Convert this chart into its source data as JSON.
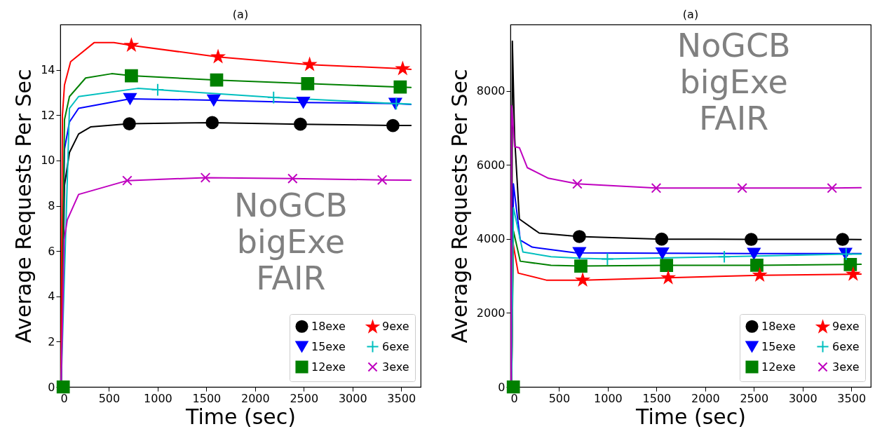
{
  "chart_data": [
    {
      "type": "line",
      "title": "(a)",
      "xlabel": "Time (sec)",
      "ylabel": "Average Requests Per Sec",
      "xlim": [
        0,
        3700
      ],
      "ylim": [
        0,
        16
      ],
      "xticks": [
        0,
        500,
        1000,
        1500,
        2000,
        2500,
        3000,
        3500
      ],
      "yticks": [
        0,
        2,
        4,
        6,
        8,
        10,
        12,
        14
      ],
      "legend": "bottom right",
      "annotations": [
        "NoGCB\nbigExe\nFAIR"
      ],
      "series": [
        {
          "name": "18exe",
          "color": "#000000",
          "x": [
            8,
            43,
            94,
            188,
            311,
            709,
            1560,
            2465,
            3415,
            3600
          ],
          "values": [
            0,
            8.9,
            10.35,
            11.17,
            11.48,
            11.62,
            11.67,
            11.6,
            11.54,
            11.54
          ]
        },
        {
          "type": "scatter",
          "color": "#000000",
          "marker": "circle",
          "x": [
            709,
            1560,
            2465,
            3415
          ],
          "values": [
            11.62,
            11.67,
            11.6,
            11.54
          ]
        },
        {
          "name": "15exe",
          "color": "#0000ff",
          "x": [
            8,
            43,
            94,
            188,
            716,
            1575,
            2495,
            3440,
            3600
          ],
          "values": [
            0,
            10.5,
            11.7,
            12.3,
            12.72,
            12.66,
            12.56,
            12.51,
            12.47
          ]
        },
        {
          "type": "scatter",
          "color": "#0000ff",
          "marker": "triangle",
          "x": [
            716,
            1575,
            2495,
            3440
          ],
          "values": [
            12.72,
            12.66,
            12.56,
            12.51
          ]
        },
        {
          "name": "12exe",
          "color": "#008000",
          "x": [
            8,
            43,
            94,
            260,
            528,
            730,
            1605,
            2540,
            3490,
            3600
          ],
          "values": [
            0,
            11.8,
            12.82,
            13.64,
            13.83,
            13.74,
            13.55,
            13.39,
            13.24,
            13.22
          ]
        },
        {
          "type": "scatter",
          "color": "#008000",
          "marker": "square",
          "x": [
            30,
            730,
            1605,
            2540,
            3490
          ],
          "values": [
            0,
            13.74,
            13.55,
            13.39,
            13.24
          ]
        },
        {
          "name": "9exe",
          "color": "#ff0000",
          "x": [
            8,
            22,
            43,
            106,
            347,
            550,
            730,
            1620,
            2560,
            3515,
            3600
          ],
          "values": [
            0,
            12.0,
            13.33,
            14.36,
            15.2,
            15.2,
            15.08,
            14.57,
            14.23,
            14.05,
            14.02
          ]
        },
        {
          "type": "scatter",
          "color": "#ff0000",
          "marker": "star",
          "x": [
            730,
            1620,
            2560,
            3515
          ],
          "values": [
            15.08,
            14.57,
            14.23,
            14.05
          ]
        },
        {
          "name": "6exe",
          "color": "#00bfbf",
          "x": [
            8,
            94,
            188,
            795,
            1000,
            2190,
            3450,
            3600
          ],
          "values": [
            0,
            12.3,
            12.82,
            13.18,
            13.12,
            12.78,
            12.51,
            12.49
          ]
        },
        {
          "type": "scatter",
          "color": "#00bfbf",
          "marker": "plus",
          "x": [
            1000,
            2190,
            3450
          ],
          "values": [
            13.12,
            12.78,
            12.51
          ]
        },
        {
          "name": "3exe",
          "color": "#bf00bf",
          "x": [
            8,
            40,
            72,
            188,
            687,
            1490,
            2385,
            3305,
            3600
          ],
          "values": [
            0,
            6.5,
            7.38,
            8.5,
            9.11,
            9.24,
            9.2,
            9.14,
            9.13
          ]
        },
        {
          "type": "scatter",
          "color": "#bf00bf",
          "marker": "cross",
          "x": [
            687,
            1490,
            2385,
            3305
          ],
          "values": [
            9.11,
            9.24,
            9.2,
            9.14
          ]
        }
      ]
    },
    {
      "type": "line",
      "title": "(a)",
      "xlabel": "Time (sec)",
      "ylabel": "Average Requests Per Sec",
      "xlim": [
        0,
        3700
      ],
      "ylim": [
        0,
        9800
      ],
      "xticks": [
        0,
        500,
        1000,
        1500,
        2000,
        2500,
        3000,
        3500
      ],
      "yticks": [
        0,
        2000,
        4000,
        6000,
        8000
      ],
      "legend": "bottom right",
      "annotations": [
        "NoGCB\nbigExe\nFAIR"
      ],
      "series": [
        {
          "name": "18exe",
          "color": "#000000",
          "x": [
            12,
            20,
            43,
            92,
            296,
            708,
            1553,
            2472,
            3410,
            3600
          ],
          "values": [
            0,
            9350,
            6750,
            4540,
            4160,
            4066,
            3997,
            3990,
            3990,
            3985
          ]
        },
        {
          "type": "scatter",
          "color": "#000000",
          "marker": "circle",
          "x": [
            708,
            1553,
            2472,
            3410
          ],
          "values": [
            4066,
            3997,
            3990,
            3990
          ]
        },
        {
          "name": "15exe",
          "color": "#0000ff",
          "x": [
            12,
            31,
            101,
            224,
            658,
            708,
            1560,
            2500,
            3440,
            3600
          ],
          "values": [
            0,
            5490,
            3970,
            3780,
            3630,
            3625,
            3615,
            3605,
            3605,
            3605
          ]
        },
        {
          "type": "scatter",
          "color": "#0000ff",
          "marker": "triangle",
          "x": [
            708,
            1560,
            2500,
            3440
          ],
          "values": [
            3625,
            3615,
            3605,
            3605
          ]
        },
        {
          "name": "12exe",
          "color": "#008000",
          "x": [
            12,
            31,
            101,
            417,
            723,
            1603,
            2530,
            3490,
            3600
          ],
          "values": [
            0,
            4218,
            3400,
            3287,
            3268,
            3287,
            3290,
            3312,
            3315
          ]
        },
        {
          "type": "scatter",
          "color": "#008000",
          "marker": "square",
          "x": [
            30,
            723,
            1603,
            2530,
            3490
          ],
          "values": [
            0,
            3268,
            3287,
            3290,
            3312
          ]
        },
        {
          "name": "9exe",
          "color": "#ff0000",
          "x": [
            12,
            26,
            80,
            369,
            742,
            1620,
            2560,
            3519,
            3600
          ],
          "values": [
            0,
            3900,
            3078,
            2888,
            2888,
            2951,
            3021,
            3046,
            3050
          ]
        },
        {
          "type": "scatter",
          "color": "#ff0000",
          "marker": "star",
          "x": [
            742,
            1620,
            2560,
            3519
          ],
          "values": [
            2888,
            2951,
            3021,
            3046
          ]
        },
        {
          "name": "6exe",
          "color": "#00bfbf",
          "x": [
            12,
            31,
            128,
            417,
            730,
            996,
            2196,
            3447,
            3600
          ],
          "values": [
            0,
            4850,
            3648,
            3521,
            3477,
            3458,
            3521,
            3590,
            3590
          ]
        },
        {
          "type": "scatter",
          "color": "#00bfbf",
          "marker": "plus",
          "x": [
            996,
            2196,
            3447
          ],
          "values": [
            3458,
            3521,
            3590
          ]
        },
        {
          "name": "3exe",
          "color": "#bf00bf",
          "x": [
            8,
            12,
            43,
            92,
            174,
            390,
            687,
            1497,
            2380,
            3302,
            3600
          ],
          "values": [
            0,
            7606,
            6498,
            6470,
            5928,
            5643,
            5491,
            5377,
            5377,
            5377,
            5390
          ]
        },
        {
          "type": "scatter",
          "color": "#bf00bf",
          "marker": "cross",
          "x": [
            687,
            1497,
            2380,
            3302
          ],
          "values": [
            5491,
            5377,
            5377,
            5377
          ]
        }
      ]
    }
  ]
}
